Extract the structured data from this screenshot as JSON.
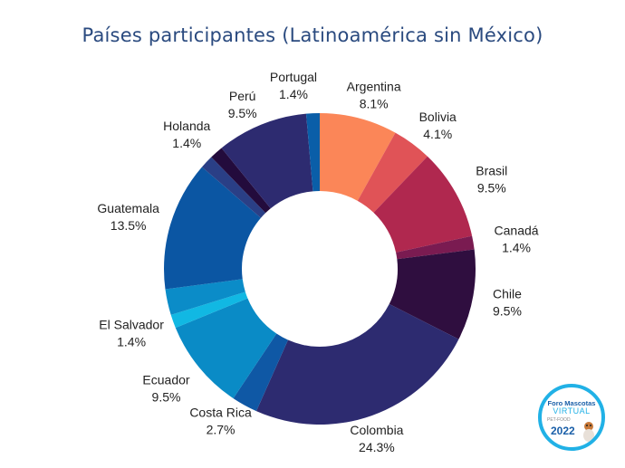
{
  "chart_data": {
    "type": "pie",
    "donut": true,
    "title": "Países participantes (Latinoamérica sin México)",
    "slices": [
      {
        "label": "Argentina",
        "value": 8.1,
        "value_label": "8.1%",
        "color": "#fb8658"
      },
      {
        "label": "Bolivia",
        "value": 4.1,
        "value_label": "4.1%",
        "color": "#e05357"
      },
      {
        "label": "Brasil",
        "value": 9.5,
        "value_label": "9.5%",
        "color": "#b0284f"
      },
      {
        "label": "Canadá",
        "value": 1.4,
        "value_label": "1.4%",
        "color": "#7a1b51"
      },
      {
        "label": "Chile",
        "value": 9.5,
        "value_label": "9.5%",
        "color": "#2f0e3f"
      },
      {
        "label": "Colombia",
        "value": 24.3,
        "value_label": "24.3%",
        "color": "#2d2b70"
      },
      {
        "label": "Costa Rica",
        "value": 2.7,
        "value_label": "2.7%",
        "color": "#0f58a5"
      },
      {
        "label": "Ecuador",
        "value": 9.5,
        "value_label": "9.5%",
        "color": "#0a8bc6"
      },
      {
        "label": "El Salvador",
        "value": 1.4,
        "value_label": "1.4%",
        "color": "#11b8e3"
      },
      {
        "label": "",
        "value": 2.7,
        "value_label": "",
        "color": "#0b8cc8"
      },
      {
        "label": "Guatemala",
        "value": 13.5,
        "value_label": "13.5%",
        "color": "#0b56a3"
      },
      {
        "label": "",
        "value": 1.4,
        "value_label": "",
        "color": "#2a3f86"
      },
      {
        "label": "Holanda",
        "value": 1.4,
        "value_label": "1.4%",
        "color": "#230b3c"
      },
      {
        "label": "Perú",
        "value": 9.5,
        "value_label": "9.5%",
        "color": "#2d2b70"
      },
      {
        "label": "Portugal",
        "value": 1.4,
        "value_label": "1.4%",
        "color": "#0a5ea8"
      }
    ]
  },
  "logo": {
    "line1": "Foro Mascotas",
    "line2": "VIRTUAL",
    "line3": "PET-FOOD",
    "year": "2022"
  }
}
